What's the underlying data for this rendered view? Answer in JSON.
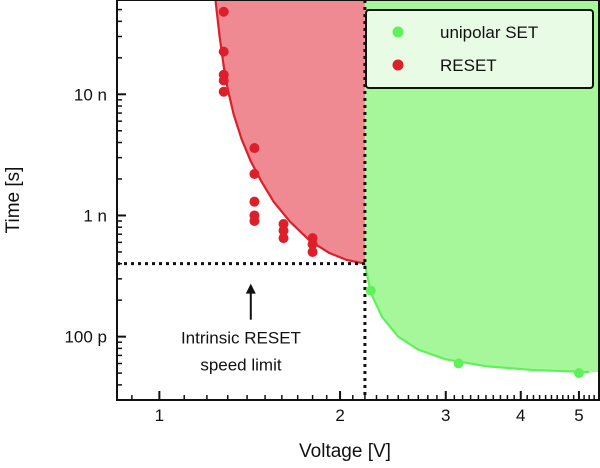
{
  "chart_data": {
    "type": "scatter",
    "xlabel": "Voltage [V]",
    "ylabel": "Time [s]",
    "x_scale": "log",
    "y_scale": "log",
    "xlim": [
      0.85,
      5.4
    ],
    "ylim": [
      3e-11,
      6e-08
    ],
    "x_ticks": [
      {
        "value": 1,
        "label": "1"
      },
      {
        "value": 2,
        "label": "2"
      },
      {
        "value": 3,
        "label": "3"
      },
      {
        "value": 4,
        "label": "4"
      },
      {
        "value": 5,
        "label": "5"
      }
    ],
    "y_ticks": [
      {
        "value": 1e-10,
        "label": "100 p"
      },
      {
        "value": 1e-09,
        "label": "1 n"
      },
      {
        "value": 1e-08,
        "label": "10 n"
      }
    ],
    "grid": false,
    "legend": {
      "placement": "top-right",
      "entries": [
        {
          "label": "unipolar SET",
          "color": "#5ef25a"
        },
        {
          "label": "RESET",
          "color": "#dd1f2a"
        }
      ]
    },
    "series": [
      {
        "name": "RESET",
        "color": "#dd1f2a",
        "fill": "#f08a92",
        "points": [
          {
            "x": 1.28,
            "y": 4.8e-08
          },
          {
            "x": 1.28,
            "y": 2.25e-08
          },
          {
            "x": 1.28,
            "y": 1.45e-08
          },
          {
            "x": 1.28,
            "y": 1.3e-08
          },
          {
            "x": 1.28,
            "y": 1.05e-08
          },
          {
            "x": 1.44,
            "y": 3.6e-09
          },
          {
            "x": 1.44,
            "y": 2.2e-09
          },
          {
            "x": 1.44,
            "y": 1.3e-09
          },
          {
            "x": 1.44,
            "y": 1e-09
          },
          {
            "x": 1.44,
            "y": 9e-10
          },
          {
            "x": 1.61,
            "y": 8.5e-10
          },
          {
            "x": 1.61,
            "y": 7.5e-10
          },
          {
            "x": 1.61,
            "y": 6.5e-10
          },
          {
            "x": 1.8,
            "y": 6.5e-10
          },
          {
            "x": 1.8,
            "y": 5.8e-10
          },
          {
            "x": 1.8,
            "y": 5e-10
          }
        ]
      },
      {
        "name": "unipolar SET",
        "color": "#5ef25a",
        "fill": "#a6f79a",
        "points": [
          {
            "x": 2.25,
            "y": 2.4e-10
          },
          {
            "x": 3.15,
            "y": 6e-11
          },
          {
            "x": 5.0,
            "y": 5e-11
          }
        ]
      }
    ],
    "fit_curves": [
      {
        "series": "RESET",
        "color": "#dd1f2a",
        "points": [
          {
            "x": 1.24,
            "y": 6e-08
          },
          {
            "x": 1.26,
            "y": 3e-08
          },
          {
            "x": 1.28,
            "y": 1.7e-08
          },
          {
            "x": 1.3,
            "y": 1.1e-08
          },
          {
            "x": 1.33,
            "y": 6.8e-09
          },
          {
            "x": 1.37,
            "y": 4.3e-09
          },
          {
            "x": 1.42,
            "y": 2.8e-09
          },
          {
            "x": 1.48,
            "y": 1.9e-09
          },
          {
            "x": 1.55,
            "y": 1.3e-09
          },
          {
            "x": 1.65,
            "y": 8.9e-10
          },
          {
            "x": 1.78,
            "y": 6.2e-10
          },
          {
            "x": 1.92,
            "y": 4.9e-10
          },
          {
            "x": 2.05,
            "y": 4.3e-10
          },
          {
            "x": 2.2,
            "y": 4e-10
          }
        ]
      },
      {
        "series": "unipolar SET",
        "color": "#5ef25a",
        "points": [
          {
            "x": 2.2,
            "y": 4e-10
          },
          {
            "x": 2.25,
            "y": 2.3e-10
          },
          {
            "x": 2.35,
            "y": 1.45e-10
          },
          {
            "x": 2.5,
            "y": 1e-10
          },
          {
            "x": 2.7,
            "y": 7.8e-11
          },
          {
            "x": 3.0,
            "y": 6.5e-11
          },
          {
            "x": 3.5,
            "y": 5.7e-11
          },
          {
            "x": 4.2,
            "y": 5.3e-11
          },
          {
            "x": 5.2,
            "y": 5.1e-11
          }
        ]
      }
    ],
    "limit_lines": {
      "voltage": 2.2,
      "time": 4e-10,
      "style": "dotted"
    },
    "annotation": {
      "lines": [
        "Intrinsic RESET",
        "speed limit"
      ],
      "arrow_x": 1.42
    }
  }
}
